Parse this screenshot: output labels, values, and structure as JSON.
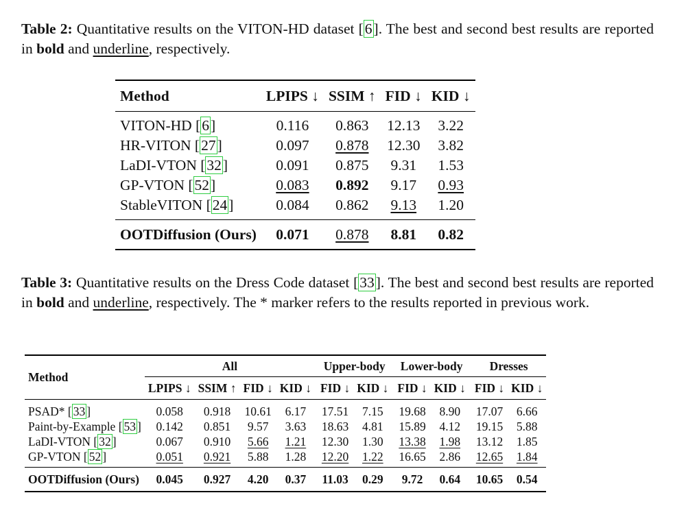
{
  "table2": {
    "caption": {
      "label": "Table 2:",
      "pre": " Quantitative results on the VITON-HD dataset ",
      "ref": "6",
      "mid": ". The best and second best results are reported in ",
      "bold_word": "bold",
      "and": " and ",
      "underline_word": "underline",
      "post": ", respectively."
    },
    "headers": [
      "Method",
      "LPIPS ↓",
      "SSIM ↑",
      "FID ↓",
      "KID ↓"
    ],
    "rows": [
      {
        "method": "VITON-HD",
        "ref": "6",
        "lpips": "0.116",
        "ssim": "0.863",
        "fid": "12.13",
        "kid": "3.22"
      },
      {
        "method": "HR-VITON",
        "ref": "27",
        "lpips": "0.097",
        "ssim": "0.878",
        "fid": "12.30",
        "kid": "3.82"
      },
      {
        "method": "LaDI-VTON",
        "ref": "32",
        "lpips": "0.091",
        "ssim": "0.875",
        "fid": "9.31",
        "kid": "1.53"
      },
      {
        "method": "GP-VTON",
        "ref": "52",
        "lpips": "0.083",
        "ssim": "0.892",
        "fid": "9.17",
        "kid": "0.93"
      },
      {
        "method": "StableVITON",
        "ref": "24",
        "lpips": "0.084",
        "ssim": "0.862",
        "fid": "9.13",
        "kid": "1.20"
      }
    ],
    "ours": {
      "method": "OOTDiffusion (Ours)",
      "lpips": "0.071",
      "ssim": "0.878",
      "fid": "8.81",
      "kid": "0.82"
    }
  },
  "table3": {
    "caption": {
      "label": "Table 3:",
      "pre": " Quantitative results on the Dress Code dataset ",
      "ref": "33",
      "mid": ". The best and second best results are reported in ",
      "bold_word": "bold",
      "and": " and ",
      "underline_word": "underline",
      "post": ", respectively. The * marker refers to the results reported in previous work."
    },
    "method_header": "Method",
    "groups": [
      "All",
      "Upper-body",
      "Lower-body",
      "Dresses"
    ],
    "subheaders": [
      "LPIPS ↓",
      "SSIM ↑",
      "FID ↓",
      "KID ↓",
      "FID ↓",
      "KID ↓",
      "FID ↓",
      "KID ↓",
      "FID ↓",
      "KID ↓"
    ],
    "rows": [
      {
        "method": "PSAD*",
        "ref": "33",
        "values": [
          "0.058",
          "0.918",
          "10.61",
          "6.17",
          "17.51",
          "7.15",
          "19.68",
          "8.90",
          "17.07",
          "6.66"
        ]
      },
      {
        "method": "Paint-by-Example",
        "ref": "53",
        "values": [
          "0.142",
          "0.851",
          "9.57",
          "3.63",
          "18.63",
          "4.81",
          "15.89",
          "4.12",
          "19.15",
          "5.88"
        ]
      },
      {
        "method": "LaDI-VTON",
        "ref": "32",
        "values": [
          "0.067",
          "0.910",
          "5.66",
          "1.21",
          "12.30",
          "1.30",
          "13.38",
          "1.98",
          "13.12",
          "1.85"
        ]
      },
      {
        "method": "GP-VTON",
        "ref": "52",
        "values": [
          "0.051",
          "0.921",
          "5.88",
          "1.28",
          "12.20",
          "1.22",
          "16.65",
          "2.86",
          "12.65",
          "1.84"
        ]
      }
    ],
    "ours": {
      "method": "OOTDiffusion (Ours)",
      "values": [
        "0.045",
        "0.927",
        "4.20",
        "0.37",
        "11.03",
        "0.29",
        "9.72",
        "0.64",
        "10.65",
        "0.54"
      ]
    }
  }
}
